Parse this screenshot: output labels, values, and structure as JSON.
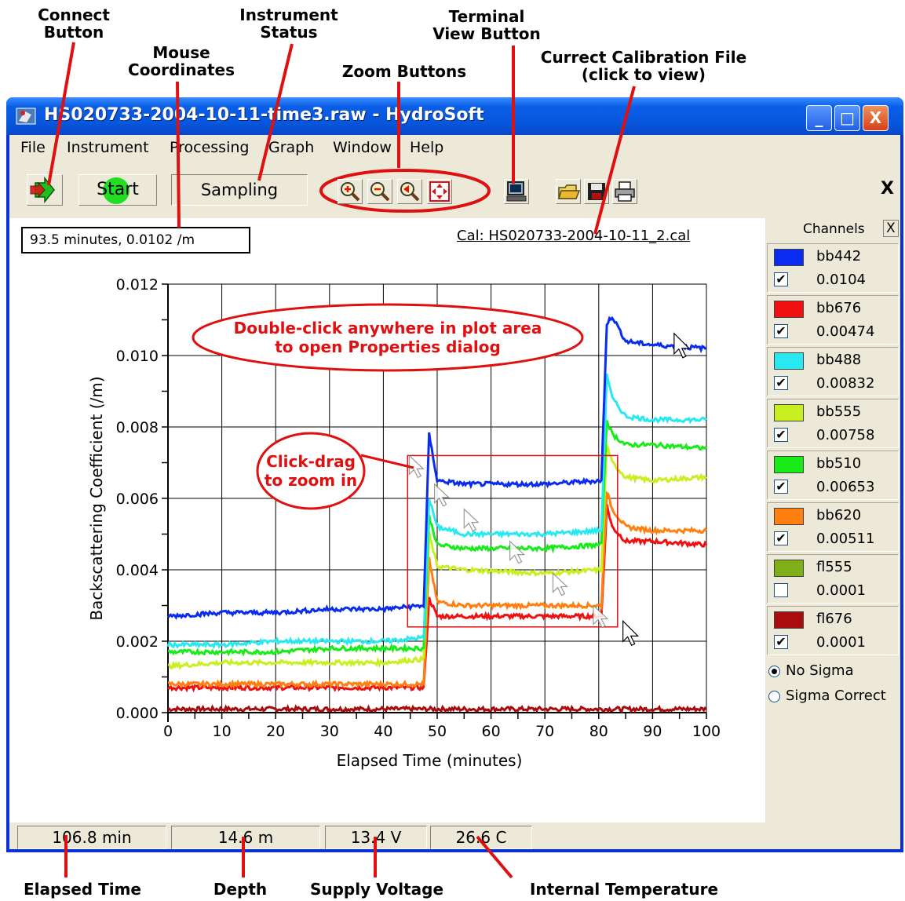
{
  "callouts": {
    "connect": "Connect\nButton",
    "instrument_status": "Instrument\nStatus",
    "mouse_coordinates": "Mouse\nCoordinates",
    "zoom_buttons": "Zoom Buttons",
    "terminal_view": "Terminal\nView Button",
    "calibration_file": "Currect Calibration File\n(click to view)",
    "elapsed_time": "Elapsed Time",
    "depth": "Depth",
    "supply_voltage": "Supply Voltage",
    "internal_temperature": "Internal Temperature"
  },
  "window": {
    "title": "HS020733-2004-10-11-time3.raw - HydroSoft",
    "minimize": "_",
    "maximize": "□",
    "close": "X"
  },
  "menu": [
    "File",
    "Instrument",
    "Processing",
    "Graph",
    "Window",
    "Help"
  ],
  "toolbar": {
    "start_label": "Start",
    "status": "Sampling",
    "close_x": "X"
  },
  "plot": {
    "mouse_coordinates": "93.5 minutes, 0.0102 /m",
    "cal_file": "Cal: HS020733-2004-10-11_2.cal",
    "annotation_properties": "Double-click anywhere in plot area\nto open Properties dialog",
    "annotation_zoom": "Click-drag\nto zoom in"
  },
  "channels": {
    "header": "Channels",
    "close": "X",
    "items": [
      {
        "name": "bb442",
        "value": "0.0104",
        "color": "#0a2cf0",
        "checked": true
      },
      {
        "name": "bb676",
        "value": "0.00474",
        "color": "#f01010",
        "checked": true
      },
      {
        "name": "bb488",
        "value": "0.00832",
        "color": "#28e8f0",
        "checked": true
      },
      {
        "name": "bb555",
        "value": "0.00758",
        "color": "#c8f020",
        "checked": true
      },
      {
        "name": "bb510",
        "value": "0.00653",
        "color": "#18ec18",
        "checked": true
      },
      {
        "name": "bb620",
        "value": "0.00511",
        "color": "#ff8010",
        "checked": true
      },
      {
        "name": "fl555",
        "value": "0.0001",
        "color": "#80b018",
        "checked": false
      },
      {
        "name": "fl676",
        "value": "0.0001",
        "color": "#a80c0c",
        "checked": true
      }
    ],
    "sigma_options": [
      {
        "label": "No Sigma",
        "selected": true
      },
      {
        "label": "Sigma Correct",
        "selected": false
      }
    ]
  },
  "statusbar": {
    "elapsed_time": "106.8 min",
    "depth": "14.6 m",
    "voltage": "13.4 V",
    "temperature": "26.6 C"
  },
  "chart_data": {
    "type": "line",
    "xlabel": "Elapsed Time (minutes)",
    "ylabel": "Backscattering Coefficient (/m)",
    "xlim": [
      0,
      100
    ],
    "ylim": [
      0,
      0.012
    ],
    "xticks": [
      0,
      10,
      20,
      30,
      40,
      50,
      60,
      70,
      80,
      90,
      100
    ],
    "yticks": [
      "0.000",
      "0.002",
      "0.004",
      "0.006",
      "0.008",
      "0.010",
      "0.012"
    ],
    "grid": true,
    "series": [
      {
        "name": "bb442",
        "color": "#0a2cf0",
        "x": [
          0,
          10,
          20,
          30,
          40,
          47.5,
          48.5,
          50,
          55,
          70,
          80.5,
          81.5,
          82.5,
          85,
          90,
          100
        ],
        "y": [
          0.0027,
          0.0028,
          0.0028,
          0.0029,
          0.0029,
          0.003,
          0.0078,
          0.0065,
          0.0064,
          0.0064,
          0.0065,
          0.0109,
          0.0111,
          0.0104,
          0.0103,
          0.0102
        ]
      },
      {
        "name": "bb488",
        "color": "#28e8f0",
        "x": [
          0,
          10,
          20,
          30,
          40,
          47.5,
          48.5,
          50,
          55,
          70,
          80.5,
          81.5,
          82.5,
          85,
          90,
          100
        ],
        "y": [
          0.0019,
          0.0019,
          0.002,
          0.002,
          0.002,
          0.0021,
          0.006,
          0.0052,
          0.005,
          0.005,
          0.0051,
          0.0095,
          0.0088,
          0.0083,
          0.0082,
          0.0082
        ]
      },
      {
        "name": "bb510",
        "color": "#18ec18",
        "x": [
          0,
          10,
          20,
          30,
          40,
          47.5,
          48.5,
          50,
          55,
          70,
          80.5,
          81.5,
          82.5,
          85,
          90,
          100
        ],
        "y": [
          0.0017,
          0.0017,
          0.0017,
          0.0018,
          0.0018,
          0.0018,
          0.0055,
          0.0047,
          0.0046,
          0.0046,
          0.0047,
          0.0082,
          0.0078,
          0.0075,
          0.0075,
          0.0074
        ]
      },
      {
        "name": "bb555",
        "color": "#c8f020",
        "x": [
          0,
          10,
          20,
          30,
          40,
          47.5,
          48.5,
          50,
          55,
          70,
          80.5,
          81.5,
          82.5,
          85,
          90,
          100
        ],
        "y": [
          0.0013,
          0.0014,
          0.0014,
          0.0014,
          0.0014,
          0.0015,
          0.005,
          0.0041,
          0.004,
          0.0039,
          0.004,
          0.0075,
          0.007,
          0.0066,
          0.0065,
          0.0066
        ]
      },
      {
        "name": "bb620",
        "color": "#ff8010",
        "x": [
          0,
          10,
          20,
          30,
          40,
          47.5,
          48.5,
          50,
          55,
          70,
          80.5,
          81.5,
          82.5,
          85,
          90,
          100
        ],
        "y": [
          0.0008,
          0.0008,
          0.0008,
          0.0008,
          0.0008,
          0.0008,
          0.0043,
          0.0031,
          0.003,
          0.003,
          0.003,
          0.0062,
          0.0057,
          0.0052,
          0.0051,
          0.0051
        ]
      },
      {
        "name": "bb676",
        "color": "#f01010",
        "x": [
          0,
          10,
          20,
          30,
          40,
          47.5,
          48.5,
          50,
          55,
          70,
          80.5,
          81.5,
          82.5,
          85,
          90,
          100
        ],
        "y": [
          0.0007,
          0.0007,
          0.0007,
          0.0007,
          0.0007,
          0.0007,
          0.0032,
          0.0027,
          0.0027,
          0.0027,
          0.0027,
          0.0058,
          0.0052,
          0.0048,
          0.0048,
          0.0047
        ]
      },
      {
        "name": "fl676",
        "color": "#a80c0c",
        "x": [
          0,
          10,
          20,
          30,
          40,
          50,
          60,
          70,
          80,
          90,
          100
        ],
        "y": [
          0.0001,
          0.0001,
          0.0001,
          0.0001,
          0.0001,
          0.0001,
          0.0001,
          0.0001,
          0.0001,
          0.0001,
          0.0001
        ]
      }
    ],
    "zoom_rectangle": {
      "x": [
        44.5,
        83.5
      ],
      "y": [
        0.0024,
        0.0072
      ]
    }
  }
}
